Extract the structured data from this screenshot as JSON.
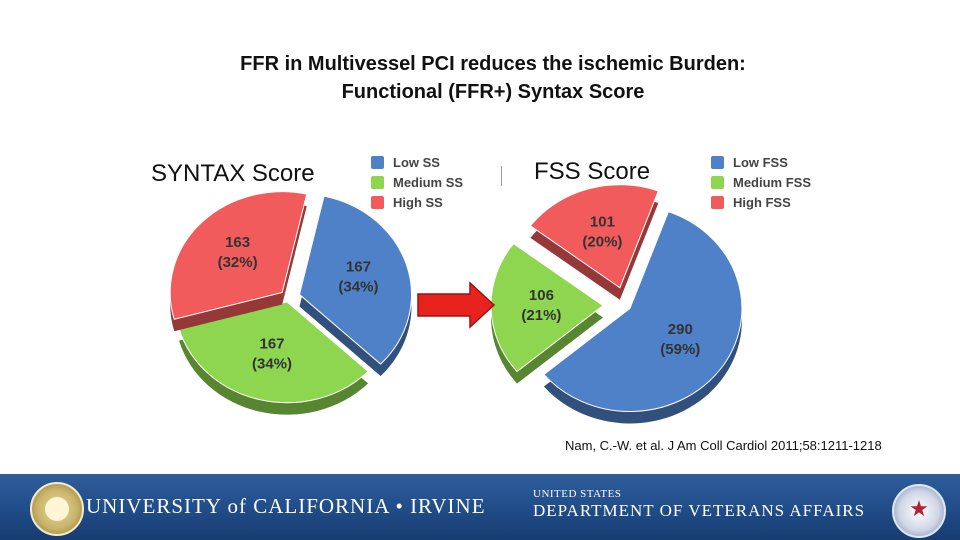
{
  "title_line1": "FFR in Multivessel PCI reduces the ischemic Burden:",
  "title_line2": "Functional (FFR+) Syntax Score",
  "chart_data": [
    {
      "type": "pie",
      "title": "SYNTAX Score",
      "slices": [
        {
          "name": "Low SS",
          "value": 167,
          "label": "167",
          "percent": "(34%)",
          "color": "#4f81c8"
        },
        {
          "name": "Medium SS",
          "value": 167,
          "label": "167",
          "percent": "(34%)",
          "color": "#8ed64f"
        },
        {
          "name": "High SS",
          "value": 163,
          "label": "163",
          "percent": "(32%)",
          "color": "#f25b5b"
        }
      ]
    },
    {
      "type": "pie",
      "title": "FSS Score",
      "slices": [
        {
          "name": "Low FSS",
          "value": 290,
          "label": "290",
          "percent": "(59%)",
          "color": "#4f81c8"
        },
        {
          "name": "Medium FSS",
          "value": 106,
          "label": "106",
          "percent": "(21%)",
          "color": "#8ed64f"
        },
        {
          "name": "High FSS",
          "value": 101,
          "label": "101",
          "percent": "(20%)",
          "color": "#f25b5b"
        }
      ]
    }
  ],
  "citation": "Nam, C.-W. et al. J Am Coll Cardiol 2011;58:1211-1218",
  "footer": {
    "left_text": "UNIVERSITY of CALIFORNIA • IRVINE",
    "right_small": "UNITED STATES",
    "right_text": "DEPARTMENT OF VETERANS AFFAIRS",
    "bg_color": "#1f4a85"
  },
  "arrow": {
    "color": "#e8221d",
    "icon": "right-arrow-icon"
  }
}
